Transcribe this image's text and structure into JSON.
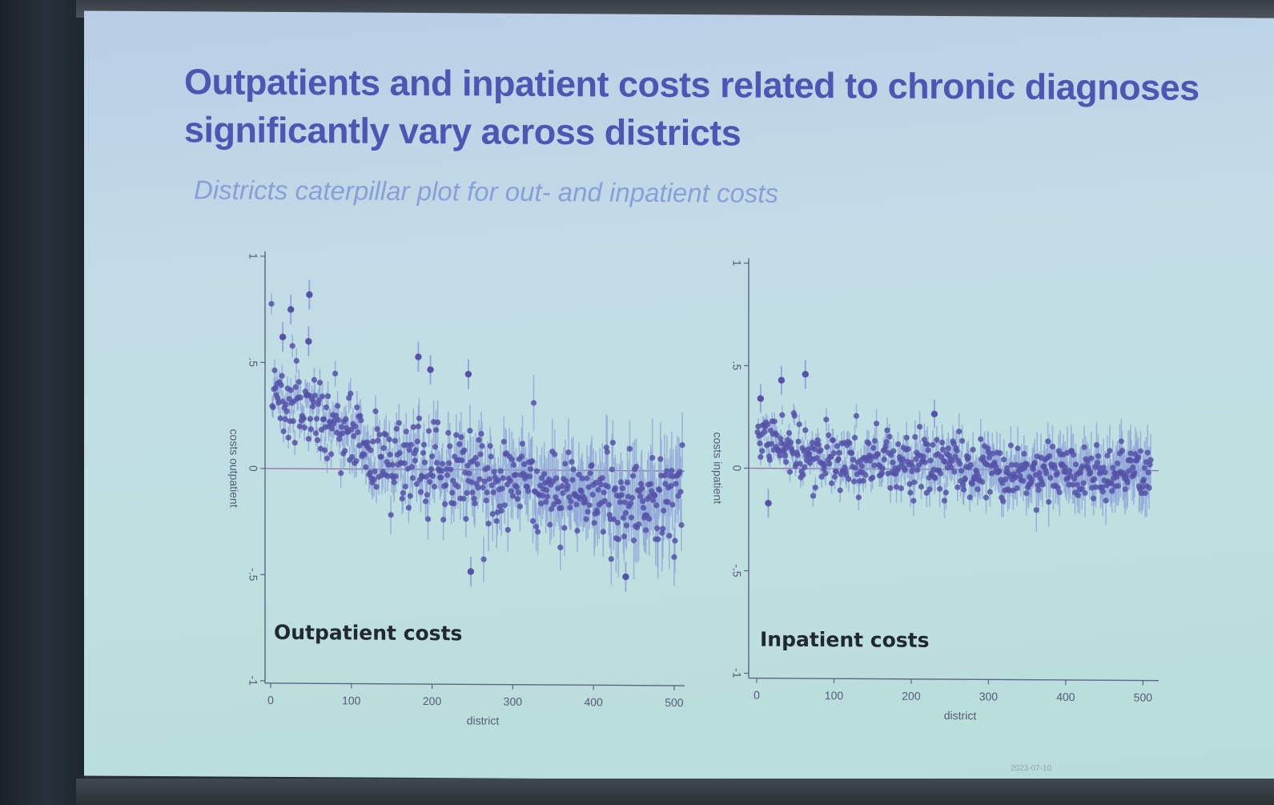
{
  "slide": {
    "title": "Outpatients and inpatient costs related to chronic diagnoses significantly vary across districts",
    "subtitle": "Districts caterpillar plot for out- and inpatient costs",
    "footer_date": "2023-07-10"
  },
  "colors": {
    "title": "#4b57b3",
    "subtitle": "#7f96d6",
    "points": "#5552a8",
    "error_bars": "#8fa3d8",
    "zero_line": "#8a4f93"
  },
  "chart_data": [
    {
      "type": "scatter",
      "panel_label": "Outpatient costs",
      "xlabel": "district",
      "ylabel": "costs outpatient",
      "xlim": [
        0,
        510
      ],
      "ylim": [
        -1,
        1
      ],
      "xticks": [
        0,
        100,
        200,
        300,
        400,
        500
      ],
      "yticks": [
        -1,
        -0.5,
        0,
        0.5,
        1
      ],
      "ytick_labels": [
        "-1",
        "-.5",
        "0",
        ".5",
        "1"
      ],
      "reference_line_y": 0,
      "trend": {
        "x": [
          0,
          60,
          120,
          200,
          300,
          400,
          510
        ],
        "y": [
          0.38,
          0.24,
          0.08,
          0.02,
          -0.05,
          -0.12,
          -0.14
        ]
      },
      "spread": 0.13,
      "ci_halfwidth": [
        0.05,
        0.16
      ],
      "n_districts": 510,
      "highlighted_points": [
        {
          "x": 25,
          "y": 0.75
        },
        {
          "x": 48,
          "y": 0.82
        },
        {
          "x": 47,
          "y": 0.6
        },
        {
          "x": 15,
          "y": 0.62
        },
        {
          "x": 183,
          "y": 0.53
        },
        {
          "x": 198,
          "y": 0.47
        },
        {
          "x": 245,
          "y": 0.45
        },
        {
          "x": 248,
          "y": -0.48
        },
        {
          "x": 440,
          "y": -0.5
        }
      ]
    },
    {
      "type": "scatter",
      "panel_label": "Inpatient costs",
      "xlabel": "district",
      "ylabel": "costs inpatient",
      "xlim": [
        0,
        510
      ],
      "ylim": [
        -1,
        1
      ],
      "xticks": [
        0,
        100,
        200,
        300,
        400,
        500
      ],
      "yticks": [
        -1,
        -0.5,
        0,
        0.5,
        1
      ],
      "ytick_labels": [
        "-1",
        "-.5",
        "0",
        ".5",
        "1"
      ],
      "reference_line_y": 0,
      "trend": {
        "x": [
          0,
          60,
          120,
          200,
          300,
          400,
          510
        ],
        "y": [
          0.16,
          0.08,
          0.04,
          0.02,
          0.0,
          -0.02,
          -0.01
        ]
      },
      "spread": 0.085,
      "ci_halfwidth": [
        0.04,
        0.12
      ],
      "n_districts": 510,
      "highlighted_points": [
        {
          "x": 32,
          "y": 0.43
        },
        {
          "x": 63,
          "y": 0.46
        },
        {
          "x": 5,
          "y": 0.34
        },
        {
          "x": 15,
          "y": -0.17
        },
        {
          "x": 230,
          "y": 0.27
        }
      ]
    }
  ]
}
